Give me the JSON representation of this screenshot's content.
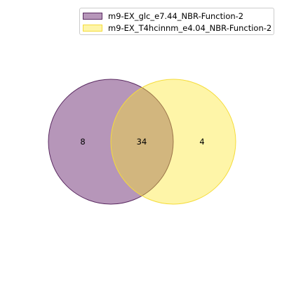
{
  "chart_data": {
    "type": "venn",
    "sets": [
      {
        "name": "m9-EX_glc_e7.44_NBR-Function-2",
        "fill": "#6d2e73",
        "edge": "#5a2a61",
        "alpha": 0.5
      },
      {
        "name": "m9-EX_T4hcinnm_e4.04_NBR-Function-2",
        "fill": "#fde725",
        "edge": "#f5dc3a",
        "alpha": 0.4
      }
    ],
    "regions": {
      "only_a": "8",
      "intersection": "34",
      "only_b": "4"
    },
    "legend_position": "top-right"
  }
}
